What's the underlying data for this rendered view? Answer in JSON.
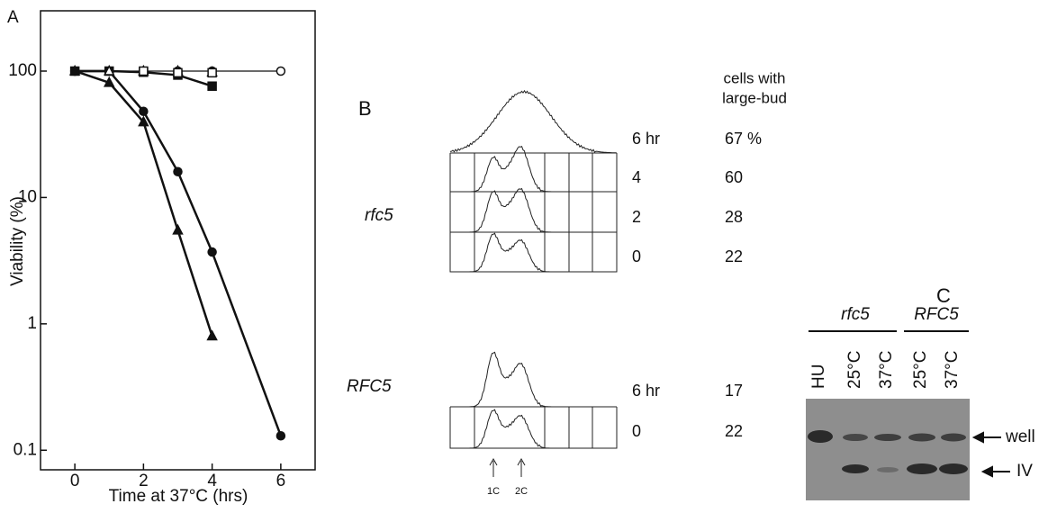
{
  "chart_data": {
    "type": "line",
    "panel_label": "A",
    "ylabel": "Viability (%)",
    "xlabel": "Time at 37°C (hrs)",
    "log_y": true,
    "xlim": [
      -1,
      7
    ],
    "ylim": [
      0.07,
      300
    ],
    "xticks": [
      0,
      2,
      4,
      6
    ],
    "yticks": [
      0.1,
      1,
      10,
      100
    ],
    "series": [
      {
        "color": "#111111",
        "marker": "circle",
        "filled": false,
        "line_width": 1.3,
        "x": [
          0,
          1,
          2,
          3,
          4,
          6
        ],
        "values": [
          100,
          100,
          100,
          100,
          100,
          100
        ]
      },
      {
        "color": "#111111",
        "marker": "square",
        "filled": true,
        "line_width": 2.5,
        "x": [
          0,
          1,
          2,
          3,
          4
        ],
        "values": [
          100,
          100,
          98,
          93,
          76
        ]
      },
      {
        "color": "#111111",
        "marker": "circle",
        "filled": true,
        "line_width": 2.5,
        "x": [
          0,
          1,
          2,
          3,
          4,
          6
        ],
        "values": [
          100,
          100,
          48,
          16,
          3.7,
          0.13
        ]
      },
      {
        "color": "#111111",
        "marker": "triangle",
        "filled": true,
        "line_width": 2.5,
        "x": [
          0,
          1,
          2,
          3,
          4
        ],
        "values": [
          100,
          81,
          39.5,
          5.5,
          0.8
        ]
      },
      {
        "color": "#111111",
        "marker": "triangle",
        "filled": false,
        "line_width": 0,
        "x": [
          1,
          2,
          3,
          4
        ],
        "values": [
          100,
          100,
          100,
          98
        ]
      },
      {
        "color": "#111111",
        "marker": "square",
        "filled": false,
        "line_width": 0,
        "x": [
          2,
          3,
          4
        ],
        "values": [
          100,
          97,
          97
        ]
      }
    ]
  },
  "panel_b": {
    "label": "B",
    "header": [
      "cells with",
      "large-bud"
    ],
    "groups": [
      {
        "strain": "rfc5",
        "rows": [
          [
            "6 hr",
            "67 %"
          ],
          [
            "4",
            "60"
          ],
          [
            "2",
            "28"
          ],
          [
            "0",
            "22"
          ]
        ]
      },
      {
        "strain": "RFC5",
        "rows": [
          [
            "6 hr",
            "17"
          ],
          [
            "0",
            "22"
          ]
        ]
      }
    ],
    "markers": [
      "1C",
      "2C"
    ]
  },
  "panel_c": {
    "label": "C",
    "groups": [
      "rfc5",
      "RFC5"
    ],
    "lanes": [
      "HU",
      "25°C",
      "37°C",
      "25°C",
      "37°C"
    ],
    "bands": [
      "well",
      "IV"
    ]
  }
}
